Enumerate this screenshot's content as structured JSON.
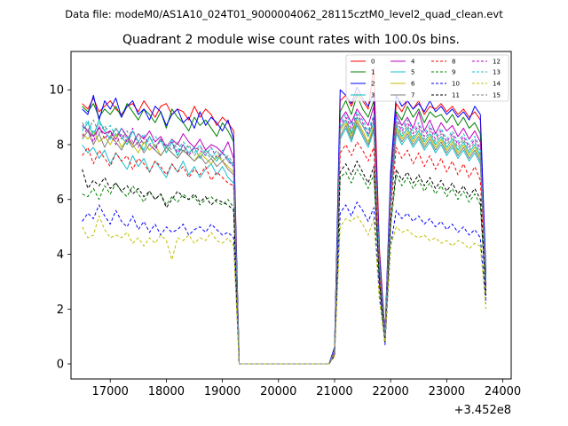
{
  "chart_data": {
    "type": "line",
    "suptitle": "Data file: modeM0/AS1A10_024T01_9000004062_28115cztM0_level2_quad_clean.evt",
    "title": "Quadrant 2 module wise count rates with 100.0s bins.",
    "xlabel": "",
    "ylabel": "",
    "x_offset_label": "+3.452e8",
    "xlim": [
      16300,
      24150
    ],
    "ylim": [
      -0.55,
      11.4
    ],
    "x_ticks": [
      17000,
      18000,
      19000,
      20000,
      21000,
      22000,
      23000,
      24000
    ],
    "x_tick_labels": [
      "17000",
      "18000",
      "19000",
      "20000",
      "21000",
      "22000",
      "23000",
      "24000"
    ],
    "y_ticks": [
      0,
      2,
      4,
      6,
      8,
      10
    ],
    "y_tick_labels": [
      "0",
      "2",
      "4",
      "6",
      "8",
      "10"
    ],
    "x_segments": [
      {
        "start": 16500,
        "end": 19200,
        "step": 100
      },
      {
        "start": 19300,
        "end": 20900,
        "step": 100
      },
      {
        "start": 21000,
        "end": 23700,
        "step": 100
      }
    ],
    "legend_position": "upper right",
    "legend_ncol": 4,
    "series": [
      {
        "name": "0",
        "color": "#ff0000",
        "style": "solid",
        "seg1": [
          9.5,
          9.3,
          9.7,
          9.2,
          9.4,
          9.6,
          9.3,
          9.1,
          9.4,
          9.5,
          9.2,
          9.6,
          9.3,
          9.0,
          9.4,
          9.5,
          9.1,
          9.3,
          9.2,
          8.9,
          9.4,
          9.0,
          9.3,
          9.1,
          8.7,
          9.0,
          8.8,
          8.5
        ],
        "seg3": [
          0.6,
          9.6,
          9.8,
          9.4,
          9.9,
          9.6,
          9.3,
          10.8,
          4.2,
          1.1,
          6.8,
          9.5,
          9.2,
          9.6,
          9.3,
          9.6,
          9.1,
          9.4,
          9.3,
          9.5,
          9.2,
          9.4,
          9.1,
          9.3,
          9.0,
          9.2,
          8.9,
          3.2
        ]
      },
      {
        "name": "1",
        "color": "#008000",
        "style": "solid",
        "seg1": [
          9.4,
          9.2,
          9.5,
          9.0,
          9.3,
          9.1,
          9.4,
          9.0,
          9.5,
          9.2,
          8.9,
          9.3,
          9.1,
          8.8,
          9.2,
          8.6,
          9.3,
          9.0,
          8.8,
          8.5,
          9.0,
          8.7,
          8.9,
          8.6,
          8.3,
          8.8,
          8.5,
          8.1
        ],
        "seg3": [
          0.5,
          9.2,
          9.6,
          9.1,
          9.8,
          9.3,
          9.0,
          9.6,
          3.8,
          1.0,
          6.5,
          9.2,
          8.9,
          9.4,
          9.0,
          9.3,
          8.8,
          9.2,
          9.0,
          9.1,
          8.8,
          9.1,
          8.7,
          9.0,
          8.6,
          8.8,
          8.4,
          3.1
        ]
      },
      {
        "name": "2",
        "color": "#0000ff",
        "style": "solid",
        "seg1": [
          9.3,
          9.1,
          9.8,
          8.9,
          9.6,
          9.3,
          9.7,
          9.0,
          9.4,
          9.6,
          9.1,
          9.3,
          8.9,
          9.4,
          9.2,
          8.7,
          9.1,
          9.3,
          8.8,
          9.0,
          8.6,
          9.2,
          8.7,
          9.0,
          8.8,
          8.5,
          8.9,
          8.2
        ],
        "seg3": [
          0.6,
          10.0,
          9.8,
          9.5,
          10.1,
          9.7,
          9.4,
          9.9,
          4.0,
          1.1,
          7.0,
          9.8,
          9.4,
          9.6,
          9.3,
          9.5,
          9.2,
          9.6,
          9.2,
          9.4,
          9.1,
          9.3,
          9.0,
          9.2,
          8.9,
          9.4,
          9.1,
          3.3
        ]
      },
      {
        "name": "3",
        "color": "#00bfbf",
        "style": "solid",
        "seg1": [
          8.5,
          8.8,
          8.3,
          8.9,
          8.5,
          8.2,
          8.6,
          8.3,
          8.0,
          8.5,
          8.1,
          7.8,
          8.3,
          7.9,
          8.2,
          7.7,
          8.1,
          7.6,
          8.0,
          7.7,
          7.9,
          7.5,
          7.8,
          7.6,
          7.4,
          7.7,
          7.5,
          7.2
        ],
        "seg3": [
          0.5,
          8.6,
          8.9,
          8.4,
          9.0,
          8.7,
          8.3,
          8.8,
          3.6,
          0.9,
          6.0,
          8.7,
          8.3,
          8.6,
          8.2,
          8.5,
          8.1,
          8.4,
          8.0,
          8.3,
          7.9,
          8.2,
          7.8,
          8.1,
          7.7,
          8.0,
          7.6,
          3.0
        ]
      },
      {
        "name": "4",
        "color": "#bf00bf",
        "style": "solid",
        "seg1": [
          8.7,
          8.5,
          8.3,
          8.6,
          8.4,
          8.5,
          8.2,
          8.6,
          8.3,
          8.0,
          8.4,
          8.2,
          8.5,
          8.1,
          8.3,
          7.9,
          8.2,
          8.0,
          8.4,
          8.1,
          7.9,
          8.2,
          7.8,
          8.0,
          7.9,
          7.7,
          8.1,
          7.5
        ],
        "seg3": [
          0.5,
          8.9,
          9.2,
          8.8,
          9.3,
          9.0,
          8.7,
          9.4,
          3.7,
          1.0,
          6.4,
          9.1,
          8.7,
          9.0,
          8.6,
          9.2,
          8.5,
          8.9,
          8.4,
          8.8,
          8.5,
          8.7,
          8.3,
          8.6,
          8.2,
          8.5,
          8.1,
          2.9
        ]
      },
      {
        "name": "5",
        "color": "#17becf",
        "style": "solid",
        "seg1": [
          8.0,
          7.7,
          7.9,
          7.5,
          7.8,
          7.3,
          7.7,
          7.4,
          7.1,
          7.6,
          7.2,
          7.5,
          7.0,
          7.4,
          7.1,
          6.8,
          7.3,
          7.0,
          7.4,
          6.9,
          7.2,
          6.8,
          7.1,
          7.3,
          6.9,
          7.2,
          6.8,
          6.6
        ],
        "seg3": [
          0.4,
          8.2,
          8.6,
          8.1,
          8.7,
          8.3,
          7.9,
          8.5,
          3.4,
          0.9,
          5.8,
          8.4,
          8.0,
          8.3,
          7.9,
          8.2,
          7.8,
          8.1,
          7.7,
          8.0,
          7.6,
          7.9,
          7.5,
          7.8,
          7.4,
          7.7,
          7.3,
          2.8
        ]
      },
      {
        "name": "6",
        "color": "#bfbf00",
        "style": "solid",
        "seg1": [
          8.4,
          8.2,
          8.5,
          8.1,
          8.3,
          8.0,
          8.4,
          7.9,
          8.2,
          8.0,
          7.7,
          8.1,
          7.8,
          8.0,
          7.6,
          7.9,
          7.7,
          7.5,
          7.8,
          7.6,
          7.4,
          7.7,
          7.5,
          7.3,
          7.6,
          7.4,
          7.2,
          7.0
        ],
        "seg3": [
          0.4,
          8.5,
          8.8,
          8.3,
          8.9,
          8.5,
          8.1,
          8.7,
          3.5,
          0.9,
          6.1,
          8.6,
          8.2,
          8.5,
          8.1,
          8.4,
          8.0,
          8.3,
          7.9,
          8.2,
          7.8,
          8.1,
          7.7,
          8.0,
          7.6,
          7.9,
          7.5,
          2.9
        ]
      },
      {
        "name": "7",
        "color": "#7f7f7f",
        "style": "solid",
        "seg1": [
          8.2,
          8.5,
          8.0,
          8.4,
          7.9,
          8.3,
          8.1,
          7.8,
          8.2,
          7.9,
          8.1,
          7.7,
          8.0,
          7.8,
          7.6,
          7.9,
          7.7,
          7.5,
          7.8,
          7.6,
          7.4,
          7.6,
          7.3,
          7.5,
          7.2,
          7.4,
          7.1,
          6.9
        ],
        "seg3": [
          0.5,
          8.3,
          8.7,
          8.2,
          8.8,
          8.4,
          8.0,
          8.6,
          3.5,
          0.9,
          6.0,
          8.5,
          8.1,
          8.4,
          8.0,
          8.3,
          7.9,
          8.2,
          7.8,
          8.1,
          7.7,
          8.0,
          7.6,
          7.9,
          7.5,
          7.8,
          7.4,
          2.8
        ]
      },
      {
        "name": "8",
        "color": "#ff0000",
        "style": "dashed",
        "seg1": [
          7.6,
          7.9,
          7.3,
          7.8,
          7.5,
          7.2,
          7.7,
          7.4,
          7.6,
          7.1,
          7.5,
          7.3,
          7.0,
          7.4,
          7.2,
          6.9,
          7.3,
          7.0,
          7.2,
          6.8,
          7.1,
          6.9,
          7.2,
          6.7,
          7.0,
          6.8,
          6.6,
          6.5
        ],
        "seg3": [
          0.4,
          7.7,
          8.0,
          7.6,
          8.1,
          7.8,
          7.4,
          7.9,
          3.2,
          0.9,
          5.6,
          7.9,
          7.5,
          7.8,
          7.3,
          7.7,
          7.2,
          7.6,
          7.1,
          7.5,
          7.0,
          7.4,
          6.9,
          7.3,
          6.8,
          7.2,
          6.7,
          2.6
        ]
      },
      {
        "name": "9",
        "color": "#008000",
        "style": "dashed",
        "seg1": [
          6.2,
          6.1,
          6.4,
          6.0,
          6.5,
          6.2,
          6.6,
          6.3,
          6.1,
          6.5,
          6.2,
          5.9,
          6.3,
          6.0,
          6.2,
          5.8,
          6.1,
          5.9,
          6.2,
          6.0,
          6.1,
          5.8,
          6.0,
          6.1,
          5.9,
          5.8,
          6.0,
          5.7
        ],
        "seg3": [
          0.3,
          6.8,
          7.0,
          6.6,
          7.1,
          6.8,
          6.4,
          6.9,
          2.9,
          0.8,
          5.0,
          6.9,
          6.5,
          6.8,
          6.4,
          6.7,
          6.3,
          6.6,
          6.2,
          6.5,
          6.1,
          6.4,
          6.0,
          6.3,
          5.9,
          6.2,
          5.8,
          2.4
        ]
      },
      {
        "name": "10",
        "color": "#0000ff",
        "style": "dashed",
        "seg1": [
          5.2,
          5.5,
          5.3,
          5.8,
          5.4,
          5.1,
          5.6,
          5.2,
          5.0,
          5.4,
          4.9,
          5.2,
          4.8,
          5.1,
          4.7,
          5.0,
          4.8,
          4.9,
          5.1,
          4.7,
          4.9,
          5.0,
          4.8,
          5.1,
          4.9,
          4.7,
          4.8,
          4.6
        ],
        "seg3": [
          0.3,
          5.5,
          5.8,
          5.4,
          5.9,
          5.6,
          5.2,
          5.7,
          2.5,
          0.7,
          4.3,
          5.6,
          5.3,
          5.5,
          5.2,
          5.4,
          5.1,
          5.3,
          5.0,
          5.2,
          4.9,
          5.1,
          4.8,
          5.0,
          4.7,
          4.9,
          4.6,
          2.2
        ]
      },
      {
        "name": "11",
        "color": "#000000",
        "style": "dashed",
        "seg1": [
          7.1,
          6.4,
          6.7,
          6.5,
          6.8,
          6.4,
          6.6,
          6.3,
          6.5,
          6.2,
          6.4,
          6.1,
          6.3,
          6.0,
          6.2,
          5.7,
          6.0,
          6.3,
          6.1,
          6.0,
          6.2,
          5.9,
          6.1,
          5.8,
          6.0,
          5.9,
          5.8,
          5.6
        ],
        "seg3": [
          0.3,
          7.0,
          7.3,
          6.9,
          7.4,
          7.0,
          6.6,
          7.2,
          3.0,
          0.8,
          5.2,
          7.1,
          6.7,
          7.0,
          6.6,
          6.9,
          6.5,
          6.8,
          6.4,
          6.7,
          6.3,
          6.6,
          6.2,
          6.5,
          6.1,
          6.4,
          6.0,
          2.5
        ]
      },
      {
        "name": "12",
        "color": "#bf00bf",
        "style": "dashed",
        "seg1": [
          8.3,
          8.6,
          8.1,
          8.7,
          8.2,
          8.5,
          8.0,
          8.4,
          8.1,
          8.6,
          7.9,
          8.3,
          8.0,
          7.8,
          8.2,
          7.9,
          8.1,
          7.7,
          8.0,
          7.6,
          7.9,
          7.8,
          7.6,
          7.9,
          7.5,
          7.7,
          7.4,
          7.2
        ],
        "seg3": [
          0.4,
          8.7,
          9.0,
          8.6,
          9.1,
          8.8,
          8.4,
          9.0,
          3.6,
          1.0,
          6.2,
          8.9,
          8.5,
          8.8,
          8.4,
          8.7,
          8.3,
          8.6,
          8.2,
          8.5,
          8.1,
          8.4,
          8.0,
          8.3,
          7.9,
          8.2,
          7.8,
          2.9
        ]
      },
      {
        "name": "13",
        "color": "#17becf",
        "style": "dashed",
        "seg1": [
          8.6,
          8.9,
          8.4,
          8.8,
          8.5,
          8.7,
          8.3,
          8.6,
          8.2,
          8.5,
          8.1,
          8.4,
          8.0,
          8.3,
          8.1,
          7.9,
          8.2,
          7.8,
          8.1,
          7.9,
          7.7,
          8.0,
          7.6,
          7.9,
          7.5,
          7.8,
          7.4,
          7.3
        ],
        "seg3": [
          0.5,
          8.8,
          9.1,
          8.7,
          9.2,
          8.9,
          8.5,
          9.1,
          3.7,
          1.0,
          6.3,
          9.0,
          8.6,
          8.9,
          8.5,
          8.8,
          8.4,
          8.7,
          8.3,
          8.6,
          8.2,
          8.5,
          8.1,
          8.4,
          8.0,
          8.3,
          7.9,
          3.0
        ]
      },
      {
        "name": "14",
        "color": "#bfbf00",
        "style": "dashed",
        "seg1": [
          5.0,
          4.6,
          4.7,
          5.4,
          4.9,
          4.6,
          4.7,
          4.6,
          4.8,
          4.4,
          4.6,
          4.3,
          4.6,
          4.4,
          4.7,
          4.5,
          3.8,
          4.6,
          4.5,
          4.7,
          4.4,
          4.6,
          4.5,
          4.8,
          4.5,
          4.4,
          4.6,
          4.3
        ],
        "seg3": [
          0.3,
          5.0,
          5.3,
          5.2,
          5.4,
          5.1,
          4.7,
          5.3,
          2.3,
          0.8,
          4.3,
          5.0,
          4.8,
          4.9,
          4.7,
          4.6,
          4.7,
          4.5,
          4.6,
          4.4,
          4.5,
          4.3,
          4.5,
          4.4,
          4.2,
          4.4,
          4.3,
          2.0
        ]
      },
      {
        "name": "15",
        "color": "#7f7f7f",
        "style": "dashed",
        "seg1": [
          8.8,
          8.5,
          8.9,
          8.4,
          8.7,
          8.3,
          8.6,
          8.2,
          8.5,
          8.1,
          8.4,
          8.0,
          8.3,
          7.9,
          8.2,
          8.0,
          7.8,
          8.1,
          7.7,
          8.0,
          7.6,
          7.9,
          7.7,
          7.5,
          7.8,
          7.4,
          7.6,
          7.3
        ],
        "seg3": [
          0.4,
          8.6,
          8.9,
          8.5,
          9.0,
          8.7,
          8.3,
          8.9,
          3.6,
          1.0,
          6.1,
          8.8,
          8.4,
          8.7,
          8.3,
          8.6,
          8.2,
          8.5,
          8.1,
          8.4,
          8.0,
          8.3,
          7.9,
          8.2,
          7.8,
          8.1,
          7.7,
          2.9
        ]
      }
    ]
  }
}
